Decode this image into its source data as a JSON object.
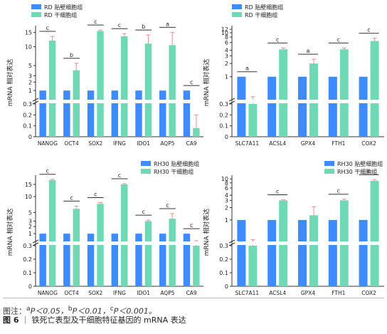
{
  "colors": {
    "pericyte": "#3d8bff",
    "stem": "#6ed9b4",
    "error": "#f08c8c",
    "axis": "#333333",
    "break": "#ffffff"
  },
  "chart_data": [
    {
      "type": "bar",
      "ylabel": "mRNA 相对表达",
      "legend": "top-left",
      "series": [
        {
          "name": "RD 贴壁细胞组",
          "values": [
            1,
            1,
            1,
            1,
            1,
            1,
            1
          ]
        },
        {
          "name": "RD 干细胞组",
          "values": [
            12.0,
            4.0,
            15.5,
            13.5,
            11.0,
            10.5,
            0.08
          ]
        }
      ],
      "errors": [
        [
          0,
          0,
          0,
          0,
          0,
          0,
          0
        ],
        [
          1.5,
          1.5,
          0.4,
          1.0,
          3.0,
          4.5,
          0.12
        ]
      ],
      "categories": [
        "NANOG",
        "OCT4",
        "SOX2",
        "IFNG",
        "IDO1",
        "AQP5",
        "CA9"
      ],
      "sig": [
        "c",
        "b",
        "c",
        "c",
        "b",
        "a",
        "c"
      ],
      "y_ticks": [
        "0",
        "0.1",
        "0.2",
        "0.3",
        "1",
        "2",
        "3",
        "5",
        "10",
        "15"
      ],
      "ylim": [
        0,
        15
      ]
    },
    {
      "type": "bar",
      "ylabel": "mRNA 相对表达",
      "legend": "top-left",
      "series": [
        {
          "name": "RD 贴壁细胞组",
          "values": [
            1,
            1,
            1,
            1,
            1
          ]
        },
        {
          "name": "RD 干细胞组",
          "values": [
            0.3,
            4.2,
            2.0,
            4.2,
            6.5
          ]
        }
      ],
      "errors": [
        [
          0,
          0,
          0,
          0,
          0
        ],
        [
          0.05,
          0.3,
          0.5,
          0.3,
          1.0
        ]
      ],
      "categories": [
        "SLC7A11",
        "ACSL4",
        "GPX4",
        "FTH1",
        "COX2"
      ],
      "sig": [
        "a",
        "c",
        "a",
        "c",
        "c"
      ],
      "y_ticks": [
        "0",
        "0.1",
        "0.2",
        "0.3",
        "1",
        "2",
        "3",
        "4",
        "6",
        "8",
        "10",
        "12"
      ],
      "ylim": [
        0,
        12
      ]
    },
    {
      "type": "bar",
      "ylabel": "mRNA 相对表达",
      "legend": "top-right",
      "series": [
        {
          "name": "RH30 贴壁细胞组",
          "values": [
            1,
            1,
            1,
            1,
            1,
            1,
            1
          ]
        },
        {
          "name": "RH30 干细胞组",
          "values": [
            17.0,
            6.0,
            7.5,
            15.0,
            3.0,
            3.5,
            0.3
          ]
        }
      ],
      "errors": [
        [
          0,
          0,
          0,
          0,
          0,
          0,
          0
        ],
        [
          0.4,
          0.8,
          0.4,
          0.3,
          0.2,
          1.2,
          0.05
        ]
      ],
      "categories": [
        "NANOG",
        "OCT4",
        "SOX2",
        "IFNG",
        "IDO1",
        "AQP5",
        "CA9"
      ],
      "sig": [
        "c",
        "c",
        "c",
        "c",
        "c",
        "c",
        "c"
      ],
      "y_ticks": [
        "0",
        "0.1",
        "0.2",
        "0.3",
        "1",
        "2",
        "3",
        "5",
        "10",
        "15"
      ],
      "ylim": [
        0,
        17
      ]
    },
    {
      "type": "bar",
      "ylabel": "mRNA 相对表达",
      "legend": "top-right",
      "series": [
        {
          "name": "RH30 贴壁细胞组",
          "values": [
            1,
            1,
            1,
            1,
            1
          ]
        },
        {
          "name": "RH30 干细胞组",
          "values": [
            0.3,
            3.0,
            1.3,
            3.0,
            9.0
          ]
        }
      ],
      "errors": [
        [
          0,
          0,
          0,
          0,
          0
        ],
        [
          0.03,
          0.1,
          0.8,
          0.2,
          0.6
        ]
      ],
      "categories": [
        "SLC7A11",
        "ACSL4",
        "GPX4",
        "FTH1",
        "COX2"
      ],
      "sig": [
        "",
        "c",
        "",
        "c",
        "c"
      ],
      "y_ticks": [
        "0",
        "0.1",
        "0.2",
        "0.3",
        "1",
        "2",
        "3",
        "4",
        "6",
        "8",
        "10"
      ],
      "ylim": [
        0,
        10
      ]
    }
  ],
  "notes": {
    "prefix": "图注：",
    "a_sup": "a",
    "a_text": "P＜0.05，",
    "b_sup": "b",
    "b_text": "P＜0.01，",
    "c_sup": "c",
    "c_text": "P＜0.001。"
  },
  "caption": {
    "label": "图 6",
    "sep": "｜",
    "text": "铁死亡表型及干细胞特征基因的 mRNA 表达"
  }
}
